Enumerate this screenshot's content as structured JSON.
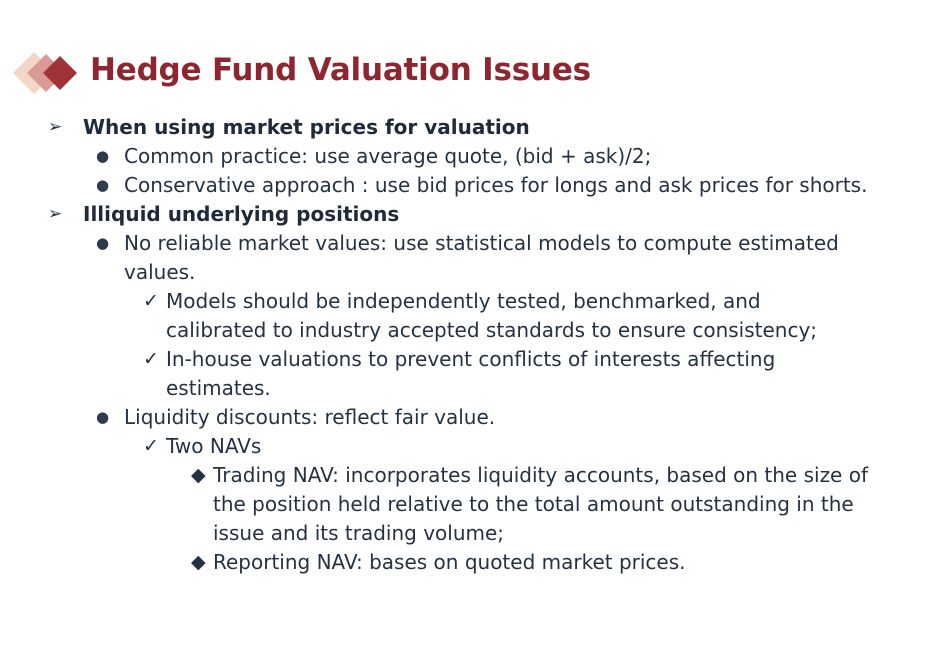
{
  "slide": {
    "title": "Hedge Fund Valuation Issues",
    "accent_color": "#8e2630",
    "logo_icon": "diamond-cluster-icon"
  },
  "sections": [
    {
      "heading": "When using market prices for valuation",
      "marker": "➢",
      "items": [
        {
          "marker": "●",
          "text": "Common practice: use average quote, (bid + ask)/2;"
        },
        {
          "marker": "●",
          "text": "Conservative approach : use bid prices for longs and ask prices for shorts."
        }
      ]
    },
    {
      "heading": "Illiquid underlying positions",
      "marker": "➢",
      "items": [
        {
          "marker": "●",
          "text": "No reliable market values: use statistical models to compute estimated values.",
          "subitems": [
            {
              "marker": "✓",
              "text": "Models should be independently tested, benchmarked, and calibrated to industry accepted standards to ensure consistency;"
            },
            {
              "marker": "✓",
              "text": "In-house valuations to prevent conflicts of interests affecting estimates."
            }
          ]
        },
        {
          "marker": "●",
          "text": "Liquidity discounts: reflect fair value.",
          "subitems": [
            {
              "marker": "✓",
              "text": "Two NAVs",
              "subitems": [
                {
                  "marker": "◆",
                  "text": "Trading NAV: incorporates liquidity accounts, based on the size of the position held relative to the total amount outstanding in the issue and its trading volume;"
                },
                {
                  "marker": "◆",
                  "text": "Reporting NAV: bases on quoted market prices."
                }
              ]
            }
          ]
        }
      ]
    }
  ]
}
